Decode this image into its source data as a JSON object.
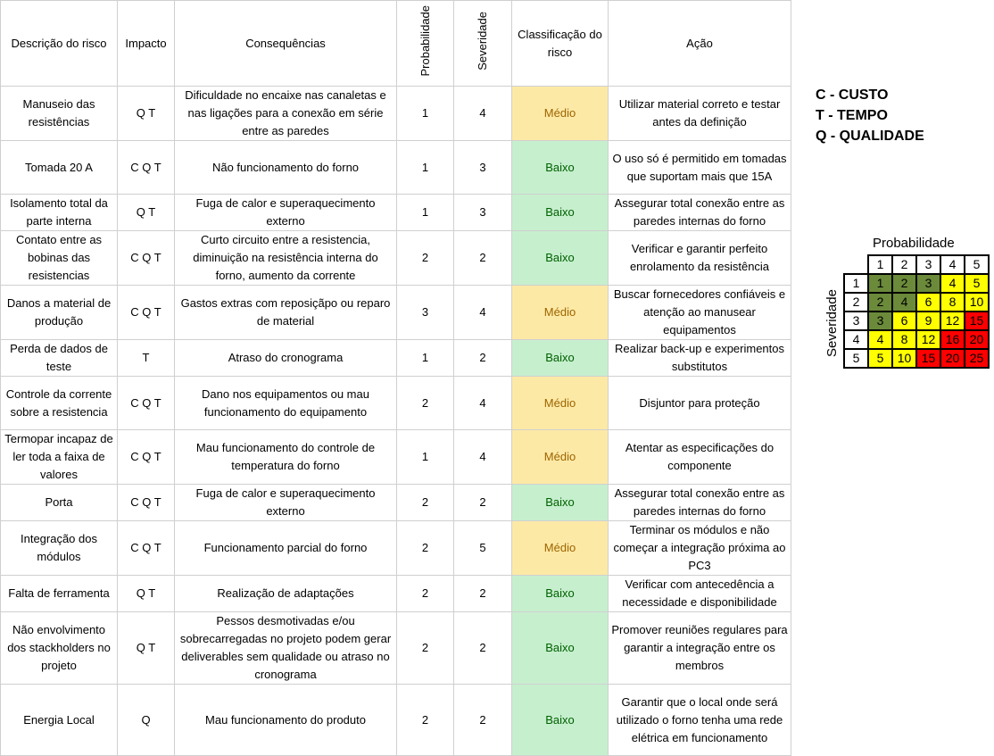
{
  "headers": {
    "descricao": "Descrição do risco",
    "impacto": "Impacto",
    "consequencias": "Consequências",
    "probabilidade": "Probabilidade",
    "severidade": "Severidade",
    "classificacao": "Classificação do risco",
    "acao": "Ação"
  },
  "rows": [
    {
      "descricao": "Manuseio das resistências",
      "impacto": "Q T",
      "consequencias": "Dificuldade no encaixe nas canaletas e nas ligações para a conexão em série entre as paredes",
      "probabilidade": "1",
      "severidade": "4",
      "classificacao": "Médio",
      "acao": "Utilizar material correto e testar antes da definição"
    },
    {
      "descricao": "Tomada 20 A",
      "impacto": "C Q T",
      "consequencias": "Não funcionamento do forno",
      "probabilidade": "1",
      "severidade": "3",
      "classificacao": "Baixo",
      "acao": "O uso só é permitido em tomadas que suportam mais que 15A"
    },
    {
      "descricao": "Isolamento total da parte interna",
      "impacto": "Q T",
      "consequencias": "Fuga de calor e superaquecimento externo",
      "probabilidade": "1",
      "severidade": "3",
      "classificacao": "Baixo",
      "acao": "Assegurar total conexão entre as paredes internas do forno"
    },
    {
      "descricao": "Contato entre as bobinas das resistencias",
      "impacto": "C Q T",
      "consequencias": "Curto circuito entre a resistencia, diminuição na resistência interna do forno, aumento da corrente",
      "probabilidade": "2",
      "severidade": "2",
      "classificacao": "Baixo",
      "acao": "Verificar e garantir perfeito enrolamento da resistência"
    },
    {
      "descricao": "Danos a material de produção",
      "impacto": "C Q T",
      "consequencias": "Gastos extras com reposiçãpo ou reparo de material",
      "probabilidade": "3",
      "severidade": "4",
      "classificacao": "Médio",
      "acao": "Buscar fornecedores confiáveis e atenção ao manusear equipamentos"
    },
    {
      "descricao": "Perda de dados de teste",
      "impacto": "T",
      "consequencias": "Atraso do cronograma",
      "probabilidade": "1",
      "severidade": "2",
      "classificacao": "Baixo",
      "acao": "Realizar back-up e experimentos substitutos"
    },
    {
      "descricao": "Controle da corrente sobre a resistencia",
      "impacto": "C Q T",
      "consequencias": "Dano nos equipamentos ou mau funcionamento do equipamento",
      "probabilidade": "2",
      "severidade": "4",
      "classificacao": "Médio",
      "acao": "Disjuntor para proteção"
    },
    {
      "descricao": "Termopar incapaz de ler toda a faixa de valores",
      "impacto": "C Q T",
      "consequencias": "Mau funcionamento do controle de temperatura do forno",
      "probabilidade": "1",
      "severidade": "4",
      "classificacao": "Médio",
      "acao": "Atentar as especificações do componente"
    },
    {
      "descricao": "Porta",
      "impacto": "C Q T",
      "consequencias": "Fuga de calor e superaquecimento externo",
      "probabilidade": "2",
      "severidade": "2",
      "classificacao": "Baixo",
      "acao": "Assegurar total conexão entre as paredes internas do forno"
    },
    {
      "descricao": "Integração dos módulos",
      "impacto": "C Q T",
      "consequencias": "Funcionamento parcial do forno",
      "probabilidade": "2",
      "severidade": "5",
      "classificacao": "Médio",
      "acao": "Terminar os módulos e não começar a integração próxima ao PC3"
    },
    {
      "descricao": "Falta de ferramenta",
      "impacto": "Q T",
      "consequencias": "Realização de adaptações",
      "probabilidade": "2",
      "severidade": "2",
      "classificacao": "Baixo",
      "acao": "Verificar com antecedência a necessidade e disponibilidade"
    },
    {
      "descricao": "Não envolvimento dos stackholders no projeto",
      "impacto": "Q T",
      "consequencias": "Pessos desmotivadas e/ou sobrecarregadas no projeto podem gerar deliverables sem qualidade ou atraso no cronograma",
      "probabilidade": "2",
      "severidade": "2",
      "classificacao": "Baixo",
      "acao": "Promover reuniões regulares para garantir a integração entre os membros"
    },
    {
      "descricao": "Energia Local",
      "impacto": "Q",
      "consequencias": "Mau funcionamento do produto",
      "probabilidade": "2",
      "severidade": "2",
      "classificacao": "Baixo",
      "acao": "Garantir que o local onde será utilizado o forno tenha uma rede elétrica em funcionamento"
    }
  ],
  "legend": [
    "C - CUSTO",
    "T - TEMPO",
    "Q - QUALIDADE"
  ],
  "matrix": {
    "title": "Probabilidade",
    "ylabel": "Severidade",
    "col_headers": [
      "1",
      "2",
      "3",
      "4",
      "5"
    ],
    "row_headers": [
      "1",
      "2",
      "3",
      "4",
      "5"
    ],
    "values": [
      [
        "1",
        "2",
        "3",
        "4",
        "5"
      ],
      [
        "2",
        "4",
        "6",
        "8",
        "10"
      ],
      [
        "3",
        "6",
        "9",
        "12",
        "15"
      ],
      [
        "4",
        "8",
        "12",
        "16",
        "20"
      ],
      [
        "5",
        "10",
        "15",
        "20",
        "25"
      ]
    ],
    "levels": [
      [
        "g",
        "g",
        "g",
        "y",
        "y"
      ],
      [
        "g",
        "g",
        "y",
        "y",
        "y"
      ],
      [
        "g",
        "y",
        "y",
        "y",
        "r"
      ],
      [
        "y",
        "y",
        "y",
        "r",
        "r"
      ],
      [
        "y",
        "y",
        "r",
        "r",
        "r"
      ]
    ],
    "colors": {
      "g": "#6b8a3a",
      "y": "#ffff00",
      "r": "#ff0000"
    }
  },
  "class_colors": {
    "Médio": "#fde9a6",
    "Baixo": "#c6efce"
  }
}
